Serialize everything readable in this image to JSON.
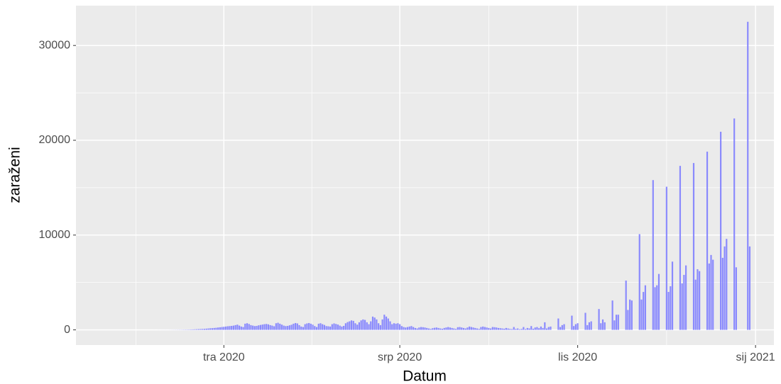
{
  "chart_data": {
    "type": "bar",
    "x_label": "Datum",
    "y_label": "zaraženi",
    "color": "#7f7fff",
    "grid": true,
    "xlim": [
      14.5,
      375.5
    ],
    "ylim": [
      -1600,
      34200
    ],
    "xticks": [
      {
        "value": 91,
        "label": "tra 2020"
      },
      {
        "value": 182,
        "label": "srp 2020"
      },
      {
        "value": 274,
        "label": "lis 2020"
      },
      {
        "value": 366,
        "label": "sij 2021"
      }
    ],
    "yticks": [
      0,
      10000,
      20000,
      30000
    ],
    "x": [
      55,
      56,
      57,
      58,
      59,
      60,
      61,
      62,
      63,
      64,
      65,
      66,
      67,
      68,
      69,
      70,
      71,
      72,
      73,
      74,
      75,
      76,
      77,
      78,
      79,
      80,
      81,
      82,
      83,
      84,
      85,
      86,
      87,
      88,
      89,
      90,
      91,
      92,
      93,
      94,
      95,
      96,
      97,
      98,
      99,
      100,
      101,
      102,
      103,
      104,
      105,
      106,
      107,
      108,
      109,
      110,
      111,
      112,
      113,
      114,
      115,
      116,
      117,
      118,
      119,
      120,
      121,
      122,
      123,
      124,
      125,
      126,
      127,
      128,
      129,
      130,
      131,
      132,
      133,
      134,
      135,
      136,
      137,
      138,
      139,
      140,
      141,
      142,
      143,
      144,
      145,
      146,
      147,
      148,
      149,
      150,
      151,
      152,
      153,
      154,
      155,
      156,
      157,
      158,
      159,
      160,
      161,
      162,
      163,
      164,
      165,
      166,
      167,
      168,
      169,
      170,
      171,
      172,
      173,
      174,
      175,
      176,
      177,
      178,
      179,
      180,
      181,
      182,
      183,
      184,
      185,
      186,
      187,
      188,
      189,
      190,
      191,
      192,
      193,
      194,
      195,
      196,
      197,
      198,
      199,
      200,
      201,
      202,
      203,
      204,
      205,
      206,
      207,
      208,
      209,
      210,
      211,
      212,
      213,
      214,
      215,
      216,
      217,
      218,
      219,
      220,
      221,
      222,
      223,
      224,
      225,
      226,
      227,
      228,
      229,
      230,
      231,
      232,
      233,
      234,
      235,
      236,
      237,
      238,
      239,
      240,
      241,
      242,
      243,
      244,
      245,
      246,
      247,
      248,
      249,
      250,
      251,
      252,
      253,
      254,
      255,
      256,
      257,
      258,
      259,
      260,
      261,
      262,
      263,
      264,
      265,
      266,
      267,
      268,
      269,
      270,
      271,
      272,
      273,
      274,
      275,
      276,
      277,
      278,
      279,
      280,
      281,
      282,
      283,
      284,
      285,
      286,
      287,
      288,
      289,
      290,
      291,
      292,
      293,
      294,
      295,
      296,
      297,
      298,
      299,
      300,
      301,
      302,
      303,
      304,
      305,
      306,
      307,
      308,
      309,
      310,
      311,
      312,
      313,
      314,
      315,
      316,
      317,
      318,
      319,
      320,
      321,
      322,
      323,
      324,
      325,
      326,
      327,
      328,
      329,
      330,
      331,
      332,
      333,
      334,
      335,
      336,
      337,
      338,
      339,
      340,
      341,
      342,
      343,
      344,
      345,
      346,
      347,
      348,
      349,
      350,
      351,
      352,
      353,
      354,
      355,
      356,
      357,
      358,
      359,
      360,
      361,
      362,
      363
    ],
    "values": [
      1,
      0,
      2,
      1,
      3,
      2,
      4,
      3,
      5,
      6,
      8,
      10,
      12,
      15,
      18,
      22,
      25,
      30,
      35,
      40,
      50,
      60,
      70,
      80,
      90,
      100,
      110,
      130,
      150,
      170,
      180,
      200,
      220,
      250,
      270,
      300,
      320,
      350,
      380,
      400,
      420,
      450,
      500,
      550,
      450,
      350,
      300,
      650,
      700,
      620,
      500,
      450,
      400,
      420,
      480,
      520,
      560,
      600,
      620,
      580,
      500,
      450,
      380,
      700,
      750,
      650,
      550,
      450,
      400,
      420,
      480,
      540,
      650,
      720,
      680,
      500,
      350,
      300,
      600,
      680,
      720,
      650,
      550,
      400,
      300,
      650,
      700,
      600,
      520,
      400,
      380,
      350,
      600,
      680,
      620,
      560,
      450,
      350,
      420,
      700,
      820,
      900,
      1000,
      950,
      700,
      550,
      800,
      1000,
      1100,
      1050,
      800,
      600,
      900,
      1400,
      1300,
      1100,
      700,
      500,
      1100,
      1600,
      1400,
      1200,
      900,
      600,
      700,
      650,
      700,
      600,
      400,
      300,
      250,
      300,
      350,
      400,
      300,
      200,
      150,
      250,
      300,
      280,
      250,
      200,
      150,
      100,
      180,
      220,
      250,
      200,
      150,
      120,
      200,
      250,
      300,
      250,
      200,
      150,
      100,
      280,
      300,
      250,
      200,
      150,
      250,
      350,
      300,
      250,
      200,
      150,
      100,
      300,
      350,
      300,
      250,
      200,
      150,
      300,
      280,
      250,
      200,
      180,
      150,
      120,
      200,
      150,
      100,
      80,
      300,
      100,
      150,
      60,
      100,
      300,
      80,
      200,
      150,
      400,
      120,
      250,
      300,
      180,
      350,
      200,
      800,
      150,
      300,
      350,
      0,
      0,
      0,
      1200,
      300,
      500,
      600,
      0,
      0,
      0,
      1500,
      400,
      600,
      700,
      0,
      0,
      0,
      1800,
      500,
      800,
      900,
      0,
      0,
      0,
      2200,
      700,
      1100,
      800,
      0,
      0,
      0,
      3100,
      1000,
      1600,
      1600,
      0,
      0,
      0,
      5200,
      2100,
      3200,
      3100,
      0,
      0,
      0,
      10100,
      3200,
      4000,
      4700,
      0,
      0,
      0,
      15800,
      4500,
      4700,
      5900,
      0,
      0,
      0,
      15100,
      4000,
      4600,
      7200,
      0,
      0,
      0,
      17300,
      4900,
      5800,
      6800,
      0,
      0,
      0,
      17600,
      5300,
      6400,
      6200,
      0,
      0,
      0,
      18800,
      7000,
      7900,
      7400,
      0,
      0,
      0,
      20900,
      7600,
      8800,
      9600,
      0,
      0,
      0,
      22300,
      6600,
      0,
      0,
      0,
      0,
      0,
      32500,
      8800
    ]
  }
}
